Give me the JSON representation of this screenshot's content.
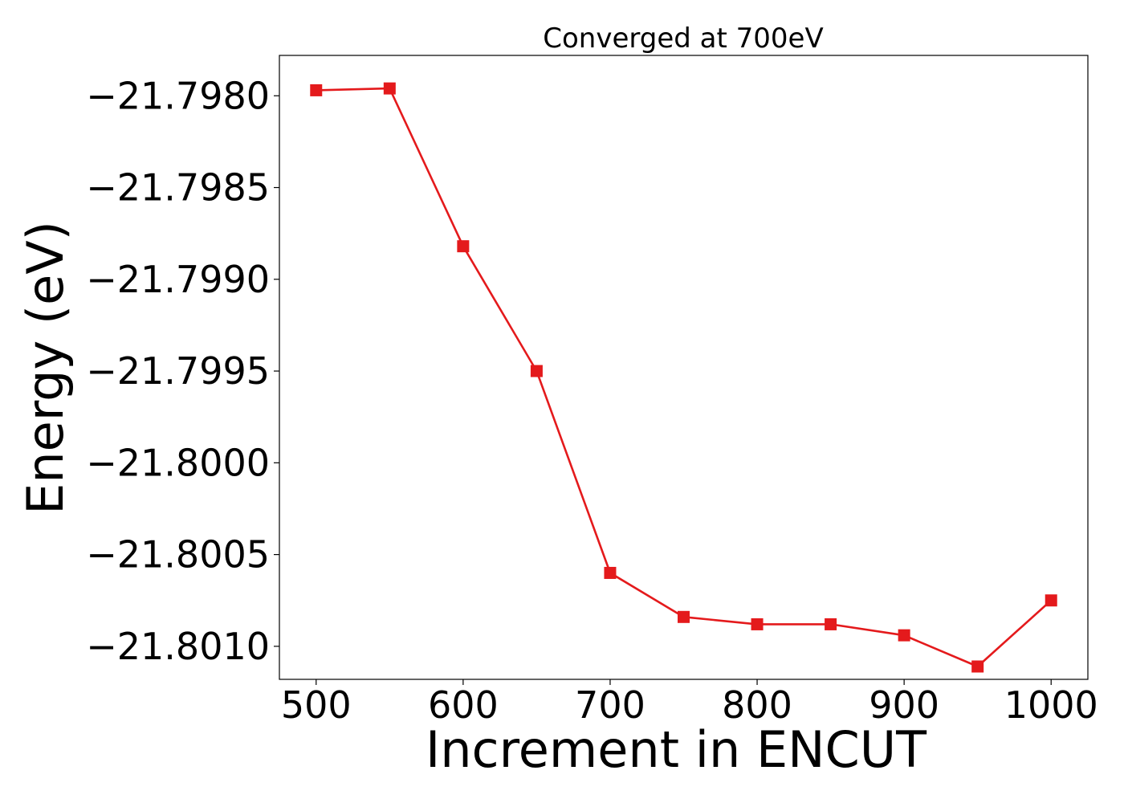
{
  "chart_data": {
    "type": "line",
    "title": "Converged at 700eV",
    "xlabel": "Increment in ENCUT",
    "ylabel": "Energy (eV)",
    "xlim": [
      475,
      1025
    ],
    "ylim": [
      -21.80118,
      -21.79778
    ],
    "xticks": [
      500,
      600,
      700,
      800,
      900,
      1000
    ],
    "yticks": [
      -21.798,
      -21.7985,
      -21.799,
      -21.7995,
      -21.8,
      -21.8005,
      -21.801
    ],
    "ytick_labels": [
      "−21.7980",
      "−21.7985",
      "−21.7990",
      "−21.7995",
      "−21.8000",
      "−21.8005",
      "−21.8010"
    ],
    "grid": false,
    "series": [
      {
        "color": "#e41a1c",
        "marker": "square",
        "x": [
          500,
          550,
          600,
          650,
          700,
          750,
          800,
          850,
          900,
          950,
          1000
        ],
        "y": [
          -21.79797,
          -21.79796,
          -21.79882,
          -21.7995,
          -21.8006,
          -21.80084,
          -21.80088,
          -21.80088,
          -21.80094,
          -21.80111,
          -21.80075
        ]
      }
    ]
  }
}
